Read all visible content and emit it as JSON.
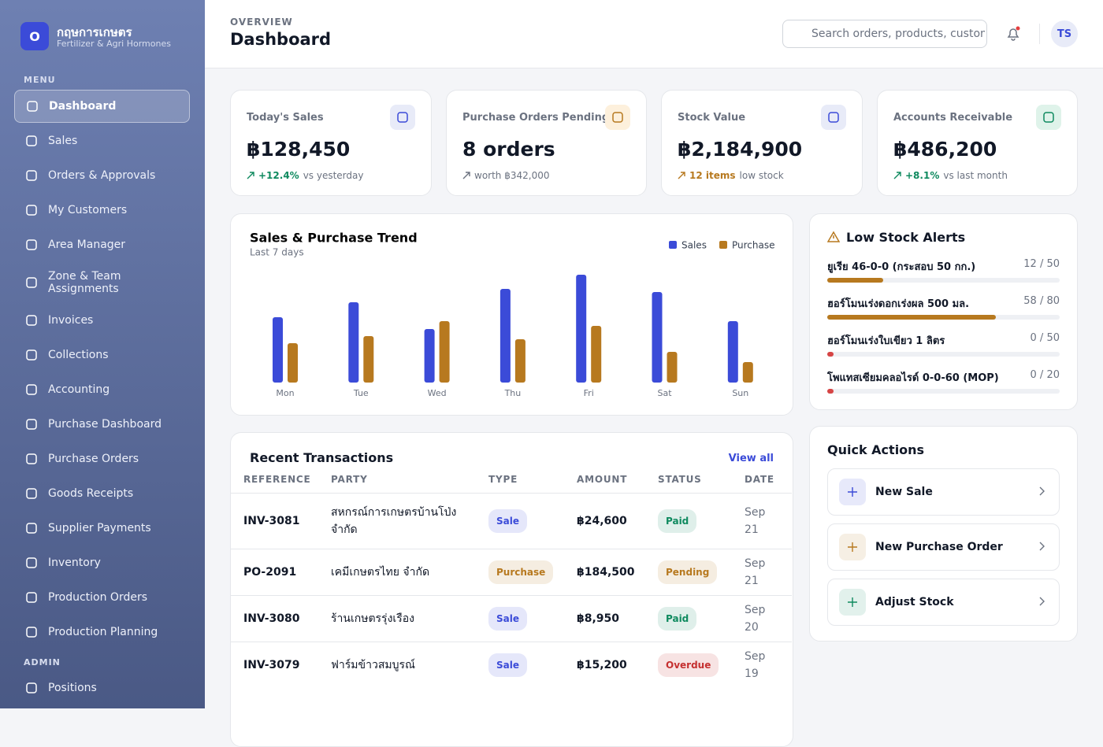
{
  "sidebar": {
    "logo": "O",
    "brand": "กฤษการเกษตร",
    "tagline": "Fertilizer & Agri Hormones",
    "menu_heading": "MENU",
    "menu": [
      "Dashboard",
      "Sales",
      "Orders & Approvals",
      "My Customers",
      "Area Manager",
      "Zone & Team Assignments",
      "Invoices",
      "Collections",
      "Accounting",
      "Purchase Dashboard",
      "Purchase Orders",
      "Goods Receipts",
      "Supplier Payments",
      "Inventory",
      "Production Orders",
      "Production Planning"
    ],
    "admin_heading": "ADMIN",
    "admin": [
      "Positions"
    ]
  },
  "header": {
    "eyebrow": "OVERVIEW",
    "title": "Dashboard",
    "search_placeholder": "Search orders, products, customers",
    "avatar": "TS"
  },
  "cards": [
    {
      "label": "Today's Sales",
      "value": "฿128,450",
      "delta": "+12.4%",
      "note": "vs yesterday",
      "color": "#0f8a5f"
    },
    {
      "label": "Purchase Orders Pending",
      "value": "8 orders",
      "note": "worth ฿342,000",
      "color": "#6b7280"
    },
    {
      "label": "Stock Value",
      "value": "฿2,184,900",
      "delta": "12 items",
      "note": "low stock",
      "color": "#b7791f"
    },
    {
      "label": "Accounts Receivable",
      "value": "฿486,200",
      "delta": "+8.1%",
      "note": "vs last month",
      "color": "#0f8a5f"
    }
  ],
  "chart_data": {
    "type": "bar",
    "title": "Sales & Purchase Trend",
    "subtitle": "Last 7 days",
    "categories": [
      "Mon",
      "Tue",
      "Wed",
      "Thu",
      "Fri",
      "Sat",
      "Sun"
    ],
    "series": [
      {
        "name": "Sales",
        "color": "#3b4bd8",
        "values": [
          83,
          102,
          68,
          119,
          137,
          115,
          78
        ]
      },
      {
        "name": "Purchase",
        "color": "#b7791f",
        "values": [
          50,
          59,
          78,
          55,
          72,
          39,
          26
        ]
      }
    ],
    "ylim": [
      0,
      140
    ]
  },
  "low_stock": {
    "title": "Low Stock Alerts",
    "items": [
      {
        "name": "ยูเรีย 46-0-0 (กระสอบ 50 กก.)",
        "level_label": "12 / 50",
        "level": 12,
        "max": 50,
        "color": "#b7791f"
      },
      {
        "name": "ฮอร์โมนเร่งดอกเร่งผล 500 มล.",
        "level_label": "58 / 80",
        "level": 58,
        "max": 80,
        "color": "#b7791f"
      },
      {
        "name": "ฮอร์โมนเร่งใบเขียว 1 ลิตร",
        "level_label": "0 / 50",
        "level": 0,
        "max": 50,
        "color": "#d64545"
      },
      {
        "name": "โพแทสเซียมคลอไรด์ 0-0-60 (MOP)",
        "level_label": "0 / 20",
        "level": 0,
        "max": 20,
        "color": "#d64545"
      }
    ]
  },
  "transactions": {
    "title": "Recent Transactions",
    "view_all": "View all",
    "columns": [
      "REFERENCE",
      "PARTY",
      "TYPE",
      "AMOUNT",
      "STATUS",
      "DATE"
    ],
    "rows": [
      {
        "reference": "INV-3081",
        "party": "สหกรณ์การเกษตรบ้านโป่ง จำกัด",
        "type": "Sale",
        "amount": "฿24,600",
        "status": "Paid",
        "date": "Sep 21",
        "type_color": "#3b4bd8",
        "status_color": "#0f8a5f"
      },
      {
        "reference": "PO-2091",
        "party": "เคมีเกษตรไทย จำกัด",
        "type": "Purchase",
        "amount": "฿184,500",
        "status": "Pending",
        "date": "Sep 21",
        "type_color": "#b7791f",
        "status_color": "#b7791f"
      },
      {
        "reference": "INV-3080",
        "party": "ร้านเกษตรรุ่งเรือง",
        "type": "Sale",
        "amount": "฿8,950",
        "status": "Paid",
        "date": "Sep 20",
        "type_color": "#3b4bd8",
        "status_color": "#0f8a5f"
      },
      {
        "reference": "INV-3079",
        "party": "ฟาร์มข้าวสมบูรณ์",
        "type": "Sale",
        "amount": "฿15,200",
        "status": "Overdue",
        "date": "Sep 19",
        "type_color": "#3b4bd8",
        "status_color": "#c53030"
      }
    ]
  },
  "quick_actions": {
    "title": "Quick Actions",
    "items": [
      {
        "label": "New Sale",
        "color": "#3b4bd8"
      },
      {
        "label": "New Purchase Order",
        "color": "#b7791f"
      },
      {
        "label": "Adjust Stock",
        "color": "#0f8a5f"
      }
    ]
  }
}
